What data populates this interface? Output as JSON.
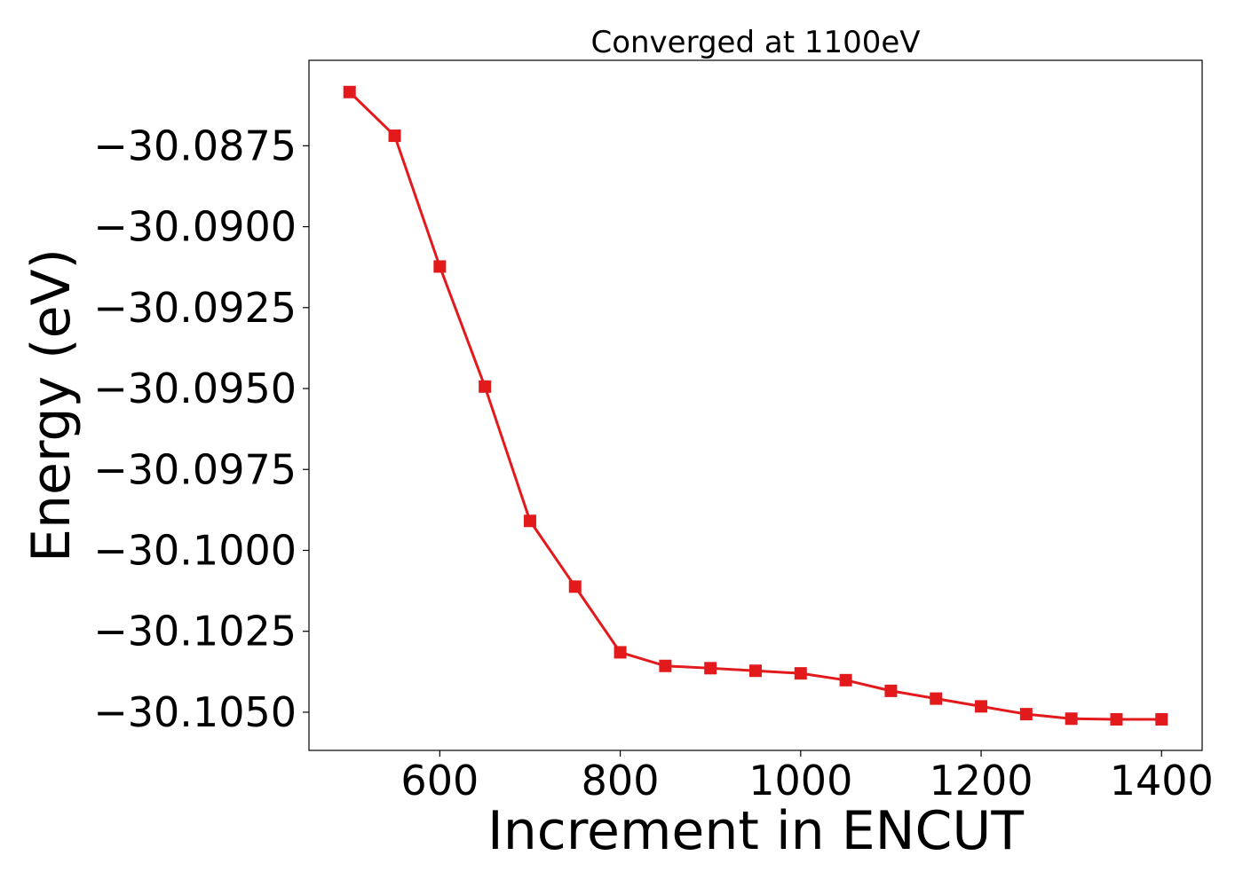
{
  "chart_data": {
    "type": "line",
    "title": "Converged at 1100eV",
    "xlabel": "Increment in ENCUT",
    "ylabel": "Energy (eV)",
    "xlim": [
      455,
      1445
    ],
    "ylim": [
      -30.10618,
      -30.08486
    ],
    "x_ticks": [
      600,
      800,
      1000,
      1200,
      1400
    ],
    "x_tick_labels": [
      "600",
      "800",
      "1000",
      "1200",
      "1400"
    ],
    "y_ticks": [
      -30.0875,
      -30.09,
      -30.0925,
      -30.095,
      -30.0975,
      -30.1,
      -30.1025,
      -30.105
    ],
    "y_tick_labels": [
      "−30.0875",
      "−30.0900",
      "−30.0925",
      "−30.0950",
      "−30.0975",
      "−30.1000",
      "−30.1025",
      "−30.1050"
    ],
    "grid": false,
    "series": [
      {
        "color": "#e31a1c",
        "marker": "square",
        "x": [
          500,
          550,
          600,
          650,
          700,
          750,
          800,
          850,
          900,
          950,
          1000,
          1050,
          1100,
          1150,
          1200,
          1250,
          1300,
          1350,
          1400
        ],
        "y": [
          -30.08584,
          -30.08719,
          -30.09123,
          -30.09494,
          -30.09909,
          -30.10112,
          -30.10315,
          -30.10357,
          -30.10364,
          -30.10372,
          -30.1038,
          -30.10401,
          -30.10434,
          -30.10458,
          -30.10482,
          -30.10506,
          -30.1052,
          -30.10522,
          -30.10522
        ]
      }
    ]
  }
}
